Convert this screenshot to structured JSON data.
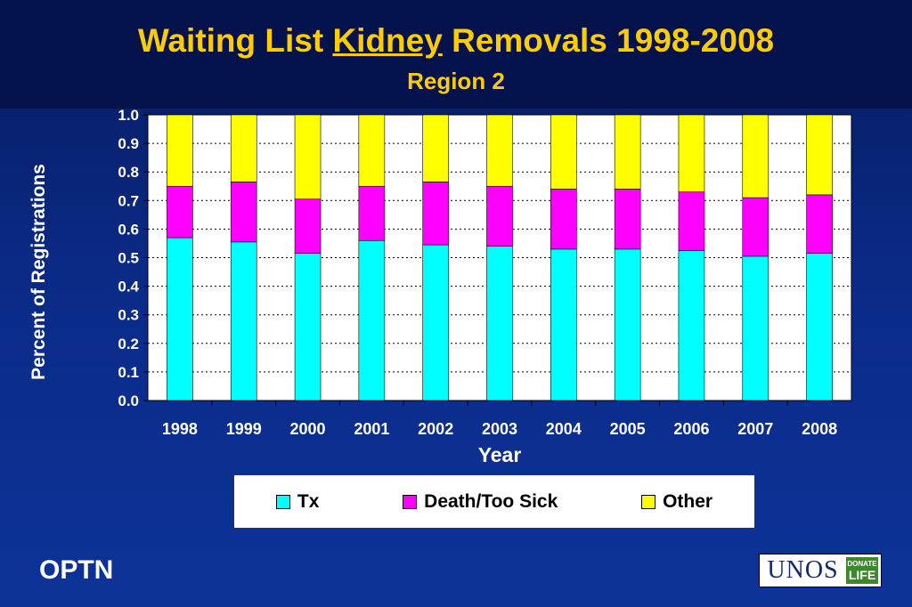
{
  "header": {
    "title_pre": "Waiting List ",
    "title_underlined": "Kidney",
    "title_post": " Removals 1998-2008",
    "subtitle": "Region 2"
  },
  "footer": {
    "brand": "OPTN",
    "logo_text": "UNOS",
    "logo_badge_line1": "DONATE",
    "logo_badge_line2": "LIFE"
  },
  "chart_data": {
    "type": "bar",
    "stacked": true,
    "categories": [
      "1998",
      "1999",
      "2000",
      "2001",
      "2002",
      "2003",
      "2004",
      "2005",
      "2006",
      "2007",
      "2008"
    ],
    "series": [
      {
        "name": "Tx",
        "color": "#00ffff",
        "values": [
          0.57,
          0.555,
          0.515,
          0.56,
          0.545,
          0.54,
          0.53,
          0.53,
          0.525,
          0.505,
          0.515
        ]
      },
      {
        "name": "Death/Too Sick",
        "color": "#ff00ff",
        "values": [
          0.18,
          0.21,
          0.19,
          0.19,
          0.22,
          0.21,
          0.21,
          0.21,
          0.205,
          0.205,
          0.205
        ]
      },
      {
        "name": "Other",
        "color": "#ffff00",
        "values": [
          0.25,
          0.235,
          0.295,
          0.25,
          0.235,
          0.25,
          0.26,
          0.26,
          0.27,
          0.29,
          0.28
        ]
      }
    ],
    "xlabel": "Year",
    "ylabel": "Percent of Registrations",
    "ylim": [
      0,
      1.0
    ],
    "yticks": [
      "0.0",
      "0.1",
      "0.2",
      "0.3",
      "0.4",
      "0.5",
      "0.6",
      "0.7",
      "0.8",
      "0.9",
      "1.0"
    ],
    "grid": true,
    "legend": "bottom"
  }
}
